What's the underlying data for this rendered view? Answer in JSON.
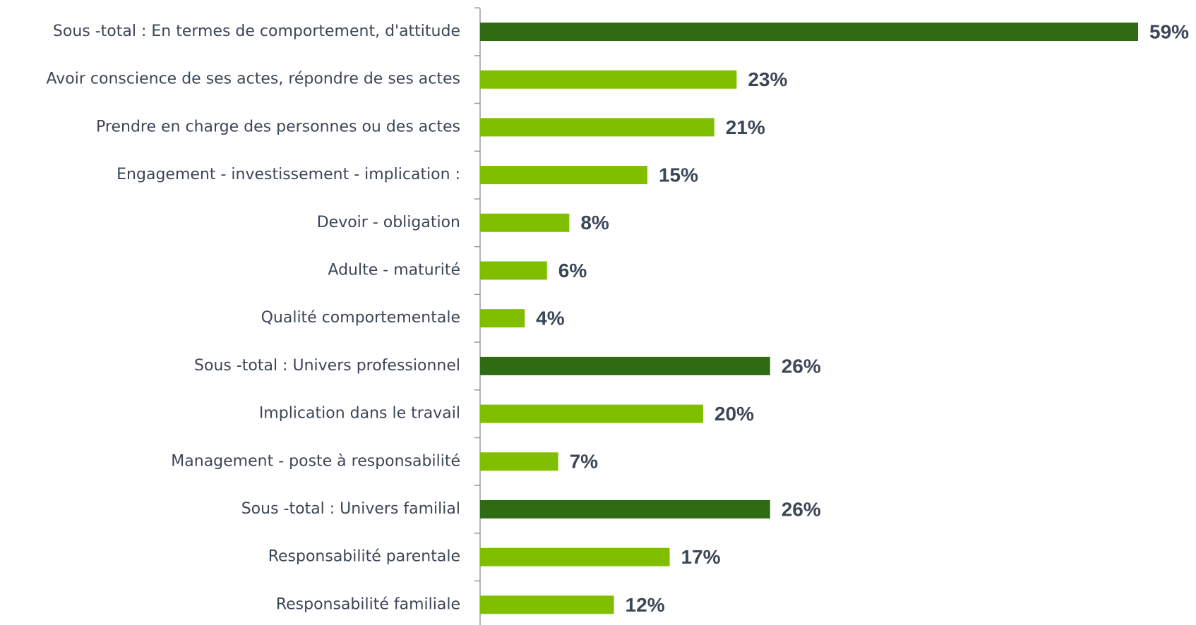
{
  "chart_data": {
    "type": "barh",
    "categories": [
      "Sous -total : En termes de comportement, d'attitude",
      "Avoir conscience de ses actes, répondre de ses actes",
      "Prendre en charge des personnes ou des actes",
      "Engagement - investissement - implication :",
      "Devoir - obligation",
      "Adulte - maturité",
      "Qualité comportementale",
      "Sous -total : Univers professionnel",
      "Implication dans le travail",
      "Management - poste à responsabilité",
      "Sous -total : Univers familial",
      "Responsabilité parentale",
      "Responsabilité familiale"
    ],
    "values": [
      59,
      23,
      21,
      15,
      8,
      6,
      4,
      26,
      20,
      7,
      26,
      17,
      12
    ],
    "value_labels": [
      "59%",
      "23%",
      "21%",
      "15%",
      "8%",
      "6%",
      "4%",
      "26%",
      "20%",
      "7%",
      "26%",
      "17%",
      "12%"
    ],
    "colors": [
      "#2e6b12",
      "#7fbf00",
      "#7fbf00",
      "#7fbf00",
      "#7fbf00",
      "#7fbf00",
      "#7fbf00",
      "#2e6b12",
      "#7fbf00",
      "#7fbf00",
      "#2e6b12",
      "#7fbf00",
      "#7fbf00"
    ]
  }
}
